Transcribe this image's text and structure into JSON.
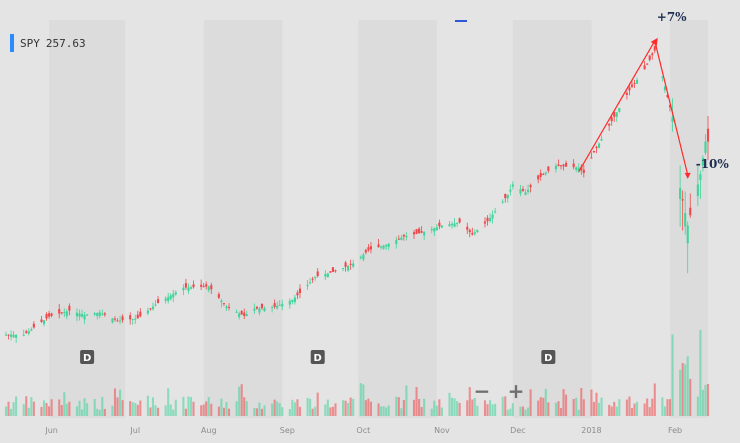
{
  "ticker": {
    "symbol": "SPY",
    "price": "257.63",
    "accent": "#2b8cff"
  },
  "colors": {
    "up": "#3fd49a",
    "down": "#f0474a",
    "trend": "#ff2a2a",
    "band": "#dcdcdc",
    "bg": "#e4e4e4"
  },
  "zoom": {
    "minus": "−",
    "plus": "+"
  },
  "chart_data": {
    "type": "candlestick",
    "x_labels": [
      "Jun",
      "Jul",
      "Aug",
      "Sep",
      "Oct",
      "Nov",
      "Dec",
      "2018",
      "Feb"
    ],
    "grid": false,
    "series": [
      {
        "x": [
          "2017-05-22",
          "2017-06-01",
          "2017-06-09",
          "2017-06-15",
          "2017-06-21",
          "2017-06-28",
          "2017-07-06",
          "2017-07-13",
          "2017-07-24",
          "2017-08-03",
          "2017-08-10",
          "2017-08-17",
          "2017-08-21",
          "2017-08-29",
          "2017-09-05",
          "2017-09-08",
          "2017-09-14",
          "2017-09-22",
          "2017-09-29",
          "2017-10-05",
          "2017-10-12",
          "2017-10-19",
          "2017-10-26",
          "2017-11-03",
          "2017-11-10",
          "2017-11-15",
          "2017-11-21",
          "2017-11-29",
          "2017-12-01",
          "2017-12-06",
          "2017-12-13",
          "2017-12-18",
          "2017-12-27",
          "2017-12-29",
          "2018-01-02",
          "2018-01-09",
          "2018-01-16",
          "2018-01-22",
          "2018-01-26",
          "2018-01-29",
          "2018-02-02",
          "2018-02-05",
          "2018-02-08",
          "2018-02-13",
          "2018-02-15"
        ],
        "close": [
          239.5,
          242.5,
          243.5,
          242.8,
          243.2,
          241.8,
          242.2,
          244.5,
          247.3,
          247.5,
          244.2,
          242.6,
          243.8,
          244.1,
          245.3,
          246.4,
          249.1,
          250.0,
          251.3,
          253.5,
          254.4,
          255.8,
          256.4,
          257.6,
          258.1,
          256.1,
          258.3,
          262.7,
          264.4,
          263.1,
          266.1,
          267.5,
          267.2,
          266.3,
          269.7,
          274.9,
          280.0,
          283.5,
          286.6,
          282.3,
          275.5,
          263.8,
          257.6,
          266.1,
          271.5
        ]
      }
    ],
    "annotations": [
      {
        "text": "+7%",
        "x": "2018-01-26"
      },
      {
        "text": "-10%",
        "x": "2018-02-08"
      }
    ],
    "markers": [
      {
        "label": "D",
        "x": "2017-06-16"
      },
      {
        "label": "D",
        "x": "2017-09-15"
      },
      {
        "label": "D",
        "x": "2017-12-15"
      }
    ]
  }
}
